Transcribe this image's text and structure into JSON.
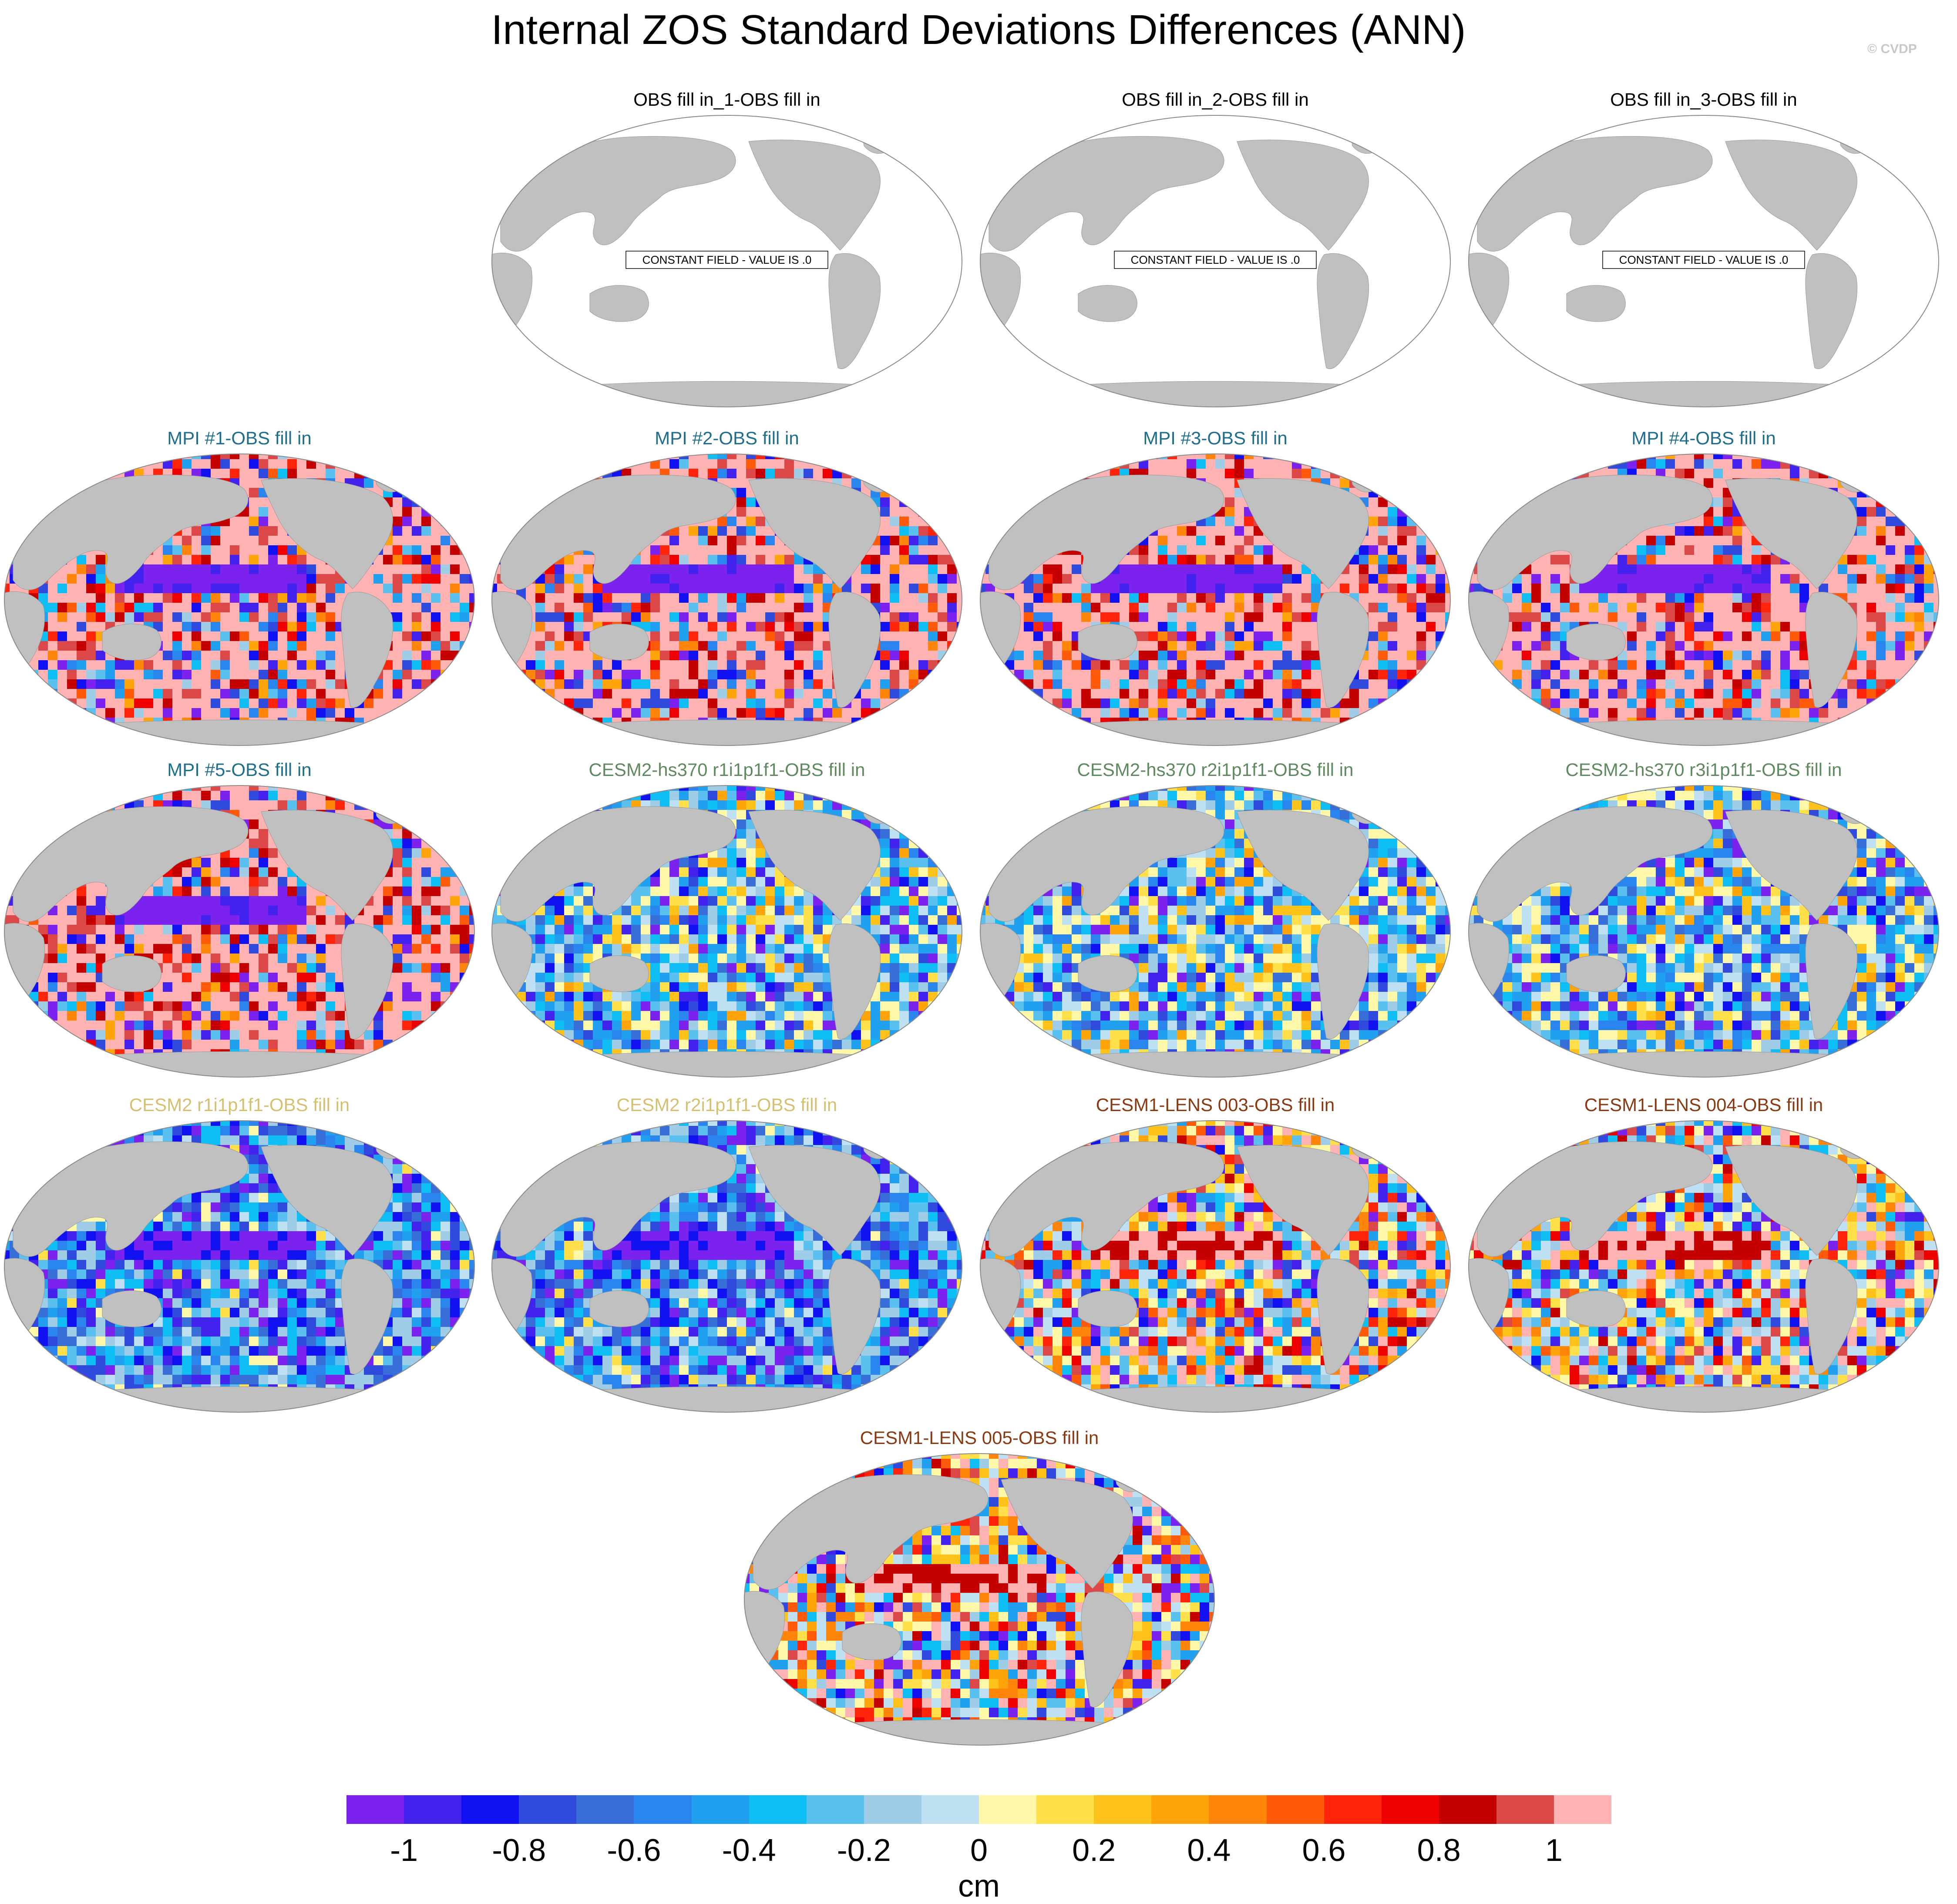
{
  "title": "Internal ZOS Standard Deviations Differences (ANN)",
  "credit": "© CVDP",
  "constant_note": "CONSTANT FIELD - VALUE IS .0",
  "panels": [
    {
      "label": "OBS fill in_1-OBS fill in",
      "color": "#000000",
      "kind": "constant"
    },
    {
      "label": "OBS fill in_2-OBS fill in",
      "color": "#000000",
      "kind": "constant"
    },
    {
      "label": "OBS fill in_3-OBS fill in",
      "color": "#000000",
      "kind": "constant"
    },
    {
      "label": "MPI #1-OBS fill in",
      "color": "#1f6e8c",
      "kind": "mpi"
    },
    {
      "label": "MPI #2-OBS fill in",
      "color": "#1f6e8c",
      "kind": "mpi"
    },
    {
      "label": "MPI #3-OBS fill in",
      "color": "#1f6e8c",
      "kind": "mpi"
    },
    {
      "label": "MPI #4-OBS fill in",
      "color": "#1f6e8c",
      "kind": "mpi"
    },
    {
      "label": "MPI #5-OBS fill in",
      "color": "#1f6e8c",
      "kind": "mpi"
    },
    {
      "label": "CESM2-hs370 r1i1p1f1-OBS fill in",
      "color": "#5f8a5f",
      "kind": "cesm2hs"
    },
    {
      "label": "CESM2-hs370 r2i1p1f1-OBS fill in",
      "color": "#5f8a5f",
      "kind": "cesm2hs"
    },
    {
      "label": "CESM2-hs370 r3i1p1f1-OBS fill in",
      "color": "#5f8a5f",
      "kind": "cesm2hs"
    },
    {
      "label": "CESM2 r1i1p1f1-OBS fill in",
      "color": "#d4c070",
      "kind": "cesm2"
    },
    {
      "label": "CESM2 r2i1p1f1-OBS fill in",
      "color": "#d4c070",
      "kind": "cesm2"
    },
    {
      "label": "CESM1-LENS 003-OBS fill in",
      "color": "#8a3a12",
      "kind": "lens"
    },
    {
      "label": "CESM1-LENS 004-OBS fill in",
      "color": "#8a3a12",
      "kind": "lens"
    },
    {
      "label": "CESM1-LENS 005-OBS fill in",
      "color": "#8a3a12",
      "kind": "lens"
    }
  ],
  "colorbar": {
    "unit": "cm",
    "ticks": [
      "-1",
      "-0.8",
      "-0.6",
      "-0.4",
      "-0.2",
      "0",
      "0.2",
      "0.4",
      "0.6",
      "0.8",
      "1"
    ],
    "colors": [
      "#7b22ee",
      "#4422ee",
      "#1111f2",
      "#2f4adc",
      "#386ed8",
      "#2a86ee",
      "#20a0ee",
      "#0fbef5",
      "#5ac0f0",
      "#9fcde8",
      "#bfe0f2",
      "#fff8a8",
      "#ffe04a",
      "#ffc21a",
      "#ffa40a",
      "#ff860a",
      "#ff5a0a",
      "#ff240a",
      "#ee0000",
      "#c40000",
      "#dc4848",
      "#ffb2b2"
    ],
    "land_color": "#c0c0c0"
  }
}
